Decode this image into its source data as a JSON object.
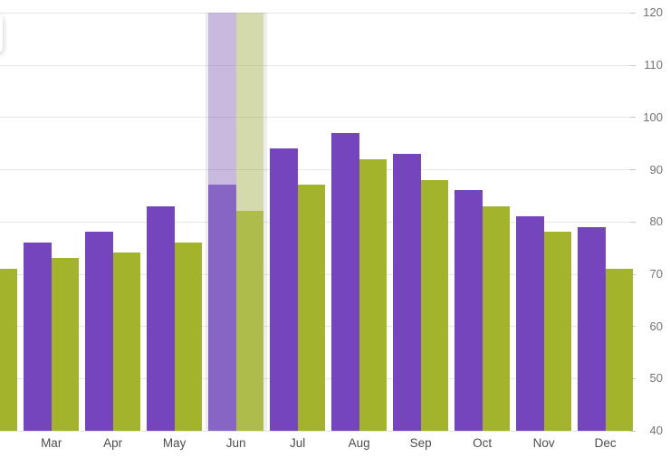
{
  "chart_data": {
    "type": "bar",
    "subtype": "grouped-vertical-columns",
    "title": "",
    "categories": [
      "",
      "Mar",
      "Apr",
      "May",
      "Jun",
      "Jul",
      "Aug",
      "Sep",
      "Oct",
      "Nov",
      "Dec"
    ],
    "series": [
      {
        "name": "purple",
        "color": "#7545be",
        "highlight_color": "#8765c4",
        "values": [
          null,
          76,
          78,
          83,
          87,
          94,
          97,
          93,
          86,
          81,
          79
        ]
      },
      {
        "name": "green",
        "color": "#a3b42c",
        "highlight_color": "#aebc4b",
        "values": [
          71,
          73,
          74,
          76,
          82,
          87,
          92,
          88,
          83,
          78,
          71
        ]
      }
    ],
    "highlighted_category_index": 4,
    "clipped_left_column": true,
    "y_axis": {
      "min": 40,
      "max": 120,
      "tick_step": 10,
      "position": "right",
      "tick_labels": [
        "120",
        "110",
        "100",
        "90",
        "80",
        "70",
        "60",
        "50",
        "40"
      ]
    },
    "x_axis": {
      "visible_labels": [
        "Mar",
        "Apr",
        "May",
        "Jun",
        "Jul",
        "Aug",
        "Sep",
        "Oct",
        "Nov",
        "Dec"
      ]
    },
    "grid": "horizontal",
    "legend": "none"
  },
  "theme": {
    "background": "#ffffff",
    "gridline_color": "#e7e7e7",
    "tick_color": "#c6c6c6",
    "y_label_color": "#727272",
    "x_label_color": "#4d4d4d",
    "highlight_band_edge": "rgba(125,125,138,0.14)",
    "highlight_band_purple": "rgba(117,69,190,0.30)",
    "highlight_band_green": "rgba(163,180,44,0.33)"
  }
}
